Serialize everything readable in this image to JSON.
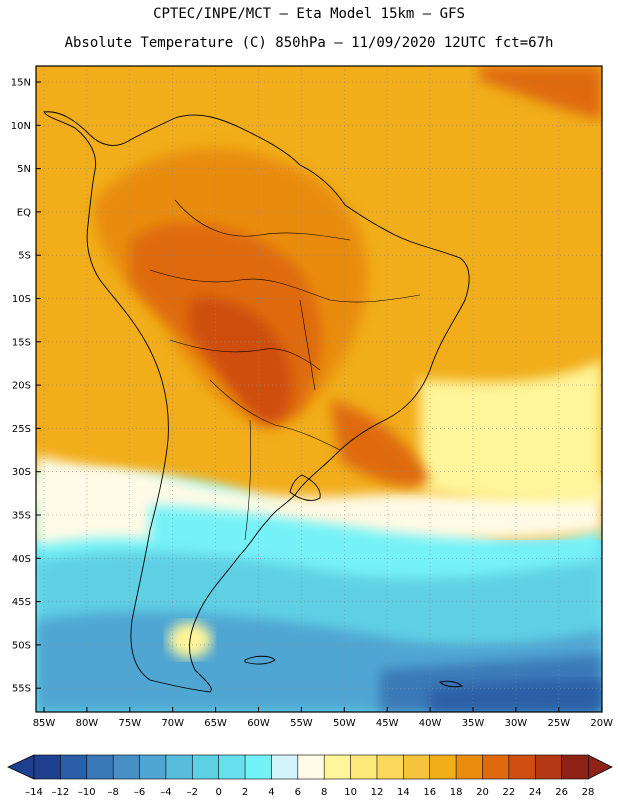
{
  "header": {
    "line1": "CPTEC/INPE/MCT –  Eta Model 15km – GFS",
    "line2": "Absolute Temperature (C) 850hPa – 11/09/2020 12UTC fct=67h"
  },
  "axes": {
    "lat_labels": [
      "15N",
      "10N",
      "5N",
      "EQ",
      "5S",
      "10S",
      "15S",
      "20S",
      "25S",
      "30S",
      "35S",
      "40S",
      "45S",
      "50S",
      "55S"
    ],
    "lon_labels": [
      "85W",
      "80W",
      "75W",
      "70W",
      "65W",
      "60W",
      "55W",
      "50W",
      "45W",
      "40W",
      "35W",
      "30W",
      "25W",
      "20W"
    ]
  },
  "colorbar": {
    "labels": [
      "-14",
      "-12",
      "-10",
      "-8",
      "-6",
      "-4",
      "-2",
      "0",
      "2",
      "4",
      "6",
      "8",
      "10",
      "12",
      "14",
      "16",
      "18",
      "20",
      "22",
      "24",
      "26",
      "28"
    ],
    "colors": [
      "#1f3f8f",
      "#2a5ea6",
      "#3a78b8",
      "#4690c6",
      "#4fa6d3",
      "#58bcdc",
      "#5ed0e4",
      "#66e0ec",
      "#74f2f7",
      "#d2f4fa",
      "#fffbe6",
      "#fff59a",
      "#ffe97a",
      "#fbd85a",
      "#f5c43c",
      "#f1ad1a",
      "#e98c10",
      "#df6a0e",
      "#cf4e10",
      "#b53814",
      "#8e2216"
    ]
  }
}
